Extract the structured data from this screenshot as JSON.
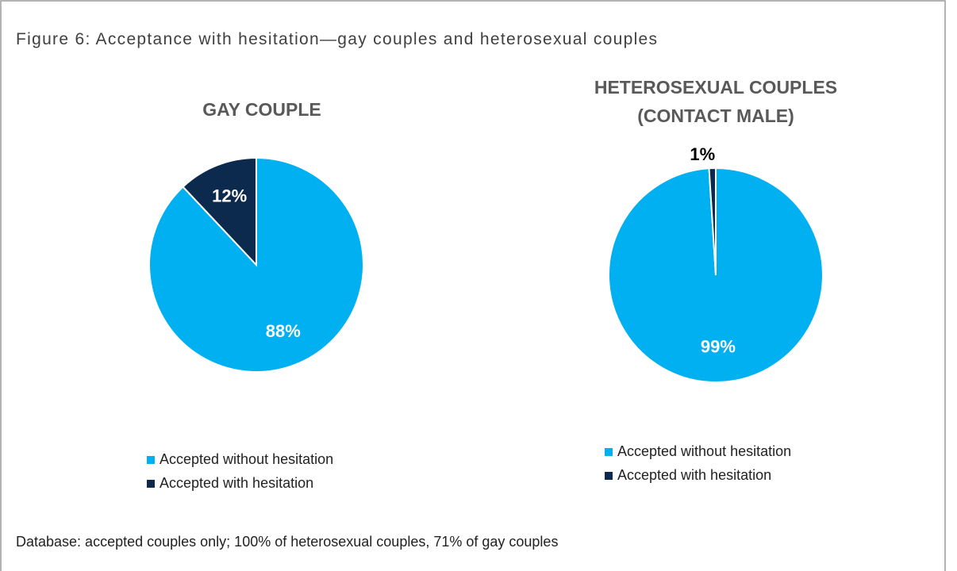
{
  "title": "Figure 6: Acceptance with hesitation—gay couples and heterosexual couples",
  "footnote": "Database: accepted couples only; 100% of heterosexual couples, 71% of gay couples",
  "chart_data": [
    {
      "type": "pie",
      "title": "GAY COUPLE",
      "categories": [
        "Accepted without hesitation",
        "Accepted with hesitation"
      ],
      "values": [
        88,
        12
      ],
      "value_labels": [
        "88%",
        "12%"
      ],
      "colors": [
        "#00b0f0",
        "#0c2a4d"
      ]
    },
    {
      "type": "pie",
      "title": "HETEROSEXUAL COUPLES (CONTACT MALE)",
      "categories": [
        "Accepted without hesitation",
        "Accepted with hesitation"
      ],
      "values": [
        99,
        1
      ],
      "value_labels": [
        "99%",
        "1%"
      ],
      "colors": [
        "#00b0f0",
        "#0c2a4d"
      ]
    }
  ]
}
